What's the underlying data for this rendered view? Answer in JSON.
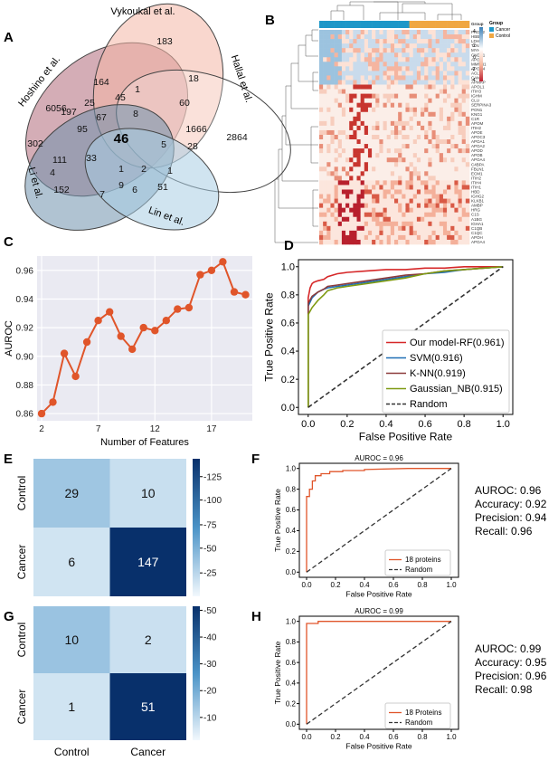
{
  "panels": {
    "A": {
      "label": "A",
      "sets": [
        "Vykoukal et al.",
        "Hoshino et al.",
        "Hallal et al.",
        "Li et al.",
        "Lin et al."
      ],
      "colors": {
        "Vykoukal et al.": "#f4b6a6",
        "Hoshino et al.": "#b16a7a",
        "Hallal et al.": "#ffffff",
        "Li et al.": "#6f91ad",
        "Lin et al.": "#a9cde3"
      },
      "counts": [
        "183",
        "6056",
        "2864",
        "152",
        "51",
        "164",
        "1",
        "18",
        "45",
        "8",
        "197",
        "25",
        "67",
        "60",
        "95",
        "46",
        "1666",
        "302",
        "5",
        "28",
        "111",
        "33",
        "4",
        "1",
        "2",
        "1",
        "9",
        "6",
        "7"
      ]
    },
    "B": {
      "label": "B",
      "legend_title_1": "Group",
      "legend_title_2": "Group",
      "legend_items": [
        "Cancer",
        "Control"
      ],
      "colorbar_ticks": [
        "4",
        "2",
        "0",
        "-2",
        "-4"
      ],
      "genes": [
        "PRDX2",
        "HBB",
        "LDHB",
        "TLN1",
        "MYH9",
        "CNDP1",
        "APOF",
        "MMRN1",
        "APOC4",
        "ACLY",
        "CAMP",
        "APMAP",
        "APOL1",
        "ITIH3",
        "IGHM",
        "CLU",
        "SERPINA3",
        "PON1",
        "KNG1",
        "C1R",
        "APOM",
        "ITIH2",
        "APOE",
        "APOC3",
        "APOA1",
        "APOA2",
        "APOD",
        "APOB",
        "APOA4",
        "C4BPA",
        "FBLN1",
        "ECM1",
        "ITIH2",
        "ITIH4",
        "ITIH1",
        "HBD",
        "IGHG2",
        "KLKB1",
        "AMBP",
        "HRG",
        "C1S",
        "A1BG",
        "IGHA1",
        "C1QB",
        "C1QC",
        "APOH",
        "APOA4"
      ]
    },
    "C": {
      "label": "C",
      "chart_data": {
        "type": "line",
        "x": [
          2,
          3,
          4,
          5,
          6,
          7,
          8,
          9,
          10,
          11,
          12,
          13,
          14,
          15,
          16,
          17,
          18,
          19,
          20
        ],
        "values": [
          0.86,
          0.868,
          0.902,
          0.886,
          0.91,
          0.925,
          0.931,
          0.914,
          0.905,
          0.92,
          0.918,
          0.925,
          0.933,
          0.934,
          0.957,
          0.96,
          0.966,
          0.945,
          0.943
        ],
        "xticks": [
          "2",
          "7",
          "12",
          "17"
        ],
        "yticks": [
          "0.86",
          "0.88",
          "0.90",
          "0.92",
          "0.94",
          "0.96"
        ],
        "xlabel": "Number of Features",
        "ylabel": "AUROC",
        "ylim": [
          0.855,
          0.97
        ],
        "color": "#e0552a"
      }
    },
    "D": {
      "label": "D",
      "chart_data": {
        "type": "line",
        "xlabel": "False Positive Rate",
        "ylabel": "True Positive Rate",
        "ticks": [
          "0.0",
          "0.2",
          "0.4",
          "0.6",
          "0.8",
          "1.0"
        ],
        "series": [
          {
            "name": "Our model-RF(0.961)",
            "color": "#d62728",
            "x": [
              0,
              0,
              0.01,
              0.02,
              0.03,
              0.05,
              0.08,
              0.1,
              0.15,
              0.2,
              0.3,
              0.4,
              0.5,
              0.6,
              0.7,
              0.8,
              0.9,
              1.0
            ],
            "y": [
              0,
              0.78,
              0.85,
              0.88,
              0.89,
              0.9,
              0.91,
              0.93,
              0.95,
              0.96,
              0.97,
              0.98,
              0.98,
              0.99,
              0.99,
              1.0,
              1.0,
              1.0
            ]
          },
          {
            "name": "SVM(0.916)",
            "color": "#1f6fb5",
            "x": [
              0,
              0,
              0.02,
              0.05,
              0.08,
              0.1,
              0.15,
              0.2,
              0.3,
              0.4,
              0.5,
              0.6,
              0.7,
              0.8,
              0.9,
              1.0
            ],
            "y": [
              0,
              0.72,
              0.78,
              0.82,
              0.84,
              0.85,
              0.86,
              0.87,
              0.89,
              0.91,
              0.93,
              0.95,
              0.96,
              0.98,
              0.99,
              1.0
            ]
          },
          {
            "name": "K-NN(0.919)",
            "color": "#8c3b3b",
            "x": [
              0,
              0,
              0.02,
              0.05,
              0.08,
              0.1,
              0.15,
              0.2,
              0.3,
              0.4,
              0.5,
              0.6,
              0.7,
              0.8,
              0.9,
              1.0
            ],
            "y": [
              0,
              0.74,
              0.79,
              0.82,
              0.84,
              0.86,
              0.87,
              0.88,
              0.9,
              0.92,
              0.94,
              0.95,
              0.97,
              0.98,
              0.99,
              1.0
            ]
          },
          {
            "name": "Gaussian_NB(0.915)",
            "color": "#7f9a12",
            "x": [
              0,
              0,
              0.02,
              0.05,
              0.08,
              0.1,
              0.15,
              0.2,
              0.3,
              0.4,
              0.5,
              0.6,
              0.7,
              0.8,
              0.9,
              1.0
            ],
            "y": [
              0,
              0.66,
              0.71,
              0.76,
              0.8,
              0.83,
              0.85,
              0.86,
              0.88,
              0.9,
              0.92,
              0.95,
              0.97,
              0.98,
              0.99,
              1.0
            ]
          },
          {
            "name": "Random",
            "color": "#333333",
            "dash": true,
            "x": [
              0,
              1
            ],
            "y": [
              0,
              1
            ]
          }
        ]
      }
    },
    "E": {
      "label": "E",
      "chart_data": {
        "type": "heatmap",
        "rows": [
          "Control",
          "Cancer"
        ],
        "values": [
          [
            29,
            10
          ],
          [
            6,
            147
          ]
        ],
        "colorbar_ticks": [
          "125",
          "100",
          "75",
          "50",
          "25"
        ],
        "vmin": 6,
        "vmax": 147
      }
    },
    "F": {
      "label": "F",
      "chart_data": {
        "type": "line",
        "title": "AUROC = 0.96",
        "xlabel": "False Positive Rate",
        "ylabel": "True Positive Rate",
        "ticks": [
          "0.0",
          "0.2",
          "0.4",
          "0.6",
          "0.8",
          "1.0"
        ],
        "series": [
          {
            "name": "18 proteins",
            "color": "#e0552a",
            "x": [
              0,
              0,
              0.02,
              0.02,
              0.04,
              0.04,
              0.06,
              0.06,
              0.1,
              0.1,
              0.16,
              0.16,
              0.25,
              0.25,
              0.4,
              0.4,
              0.7,
              1.0
            ],
            "y": [
              0,
              0.73,
              0.73,
              0.8,
              0.8,
              0.88,
              0.88,
              0.93,
              0.93,
              0.95,
              0.95,
              0.97,
              0.97,
              0.98,
              0.98,
              0.99,
              1.0,
              1.0
            ]
          },
          {
            "name": "Random",
            "color": "#333333",
            "dash": true,
            "x": [
              0,
              1
            ],
            "y": [
              0,
              1
            ]
          }
        ]
      },
      "stats": [
        "AUROC: 0.96",
        "Accuracy: 0.92",
        "Precision: 0.94",
        "Recall: 0.96"
      ]
    },
    "G": {
      "label": "G",
      "chart_data": {
        "type": "heatmap",
        "rows": [
          "Control",
          "Cancer"
        ],
        "cols": [
          "Control",
          "Cancer"
        ],
        "values": [
          [
            10,
            2
          ],
          [
            1,
            51
          ]
        ],
        "colorbar_ticks": [
          "50",
          "40",
          "30",
          "20",
          "10"
        ],
        "vmin": 1,
        "vmax": 51
      }
    },
    "H": {
      "label": "H",
      "chart_data": {
        "type": "line",
        "title": "AUROC = 0.99",
        "xlabel": "False Positive Rate",
        "ylabel": "True Positive Rate",
        "ticks": [
          "0.0",
          "0.2",
          "0.4",
          "0.6",
          "0.8",
          "1.0"
        ],
        "series": [
          {
            "name": "18 Proteins",
            "color": "#e0552a",
            "x": [
              0,
              0,
              0.08,
              0.08,
              1.0
            ],
            "y": [
              0,
              0.98,
              0.98,
              1.0,
              1.0
            ]
          },
          {
            "name": "Random",
            "color": "#333333",
            "dash": true,
            "x": [
              0,
              1
            ],
            "y": [
              0,
              1
            ]
          }
        ]
      },
      "stats": [
        "AUROC: 0.99",
        "Accuracy: 0.95",
        "Precision: 0.96",
        "Recall: 0.98"
      ]
    }
  }
}
